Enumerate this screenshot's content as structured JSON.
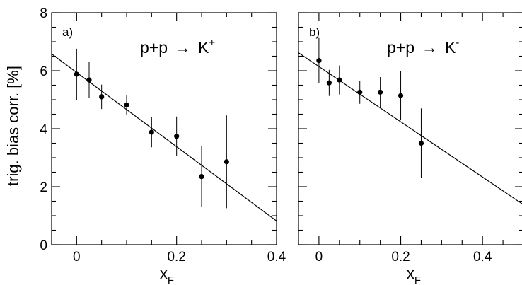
{
  "chart_data": [
    {
      "type": "scatter",
      "panel_label": "a)",
      "reaction": {
        "lhs": "p+p",
        "arrow": "→",
        "particle": "K",
        "charge": "+"
      },
      "xlabel": {
        "base": "x",
        "sub": "F"
      },
      "ylabel": "trig. bias corr. [%]",
      "xlim": [
        -0.05,
        0.4
      ],
      "ylim": [
        0,
        8
      ],
      "xticks": [
        0,
        0.2,
        0.4
      ],
      "xtick_labels": [
        "0",
        "0.2",
        "0.4"
      ],
      "yticks": [
        0,
        2,
        4,
        6,
        8
      ],
      "ytick_labels": [
        "0",
        "2",
        "4",
        "6",
        "8"
      ],
      "grid": false,
      "points": [
        {
          "x": 0.0,
          "y": 5.88,
          "err": 0.88
        },
        {
          "x": 0.025,
          "y": 5.68,
          "err": 0.62
        },
        {
          "x": 0.05,
          "y": 5.1,
          "err": 0.42
        },
        {
          "x": 0.1,
          "y": 4.82,
          "err": 0.35
        },
        {
          "x": 0.15,
          "y": 3.88,
          "err": 0.52
        },
        {
          "x": 0.2,
          "y": 3.74,
          "err": 0.68
        },
        {
          "x": 0.25,
          "y": 2.35,
          "err": 1.05
        },
        {
          "x": 0.3,
          "y": 2.86,
          "err": 1.6
        }
      ],
      "fit_line": {
        "x": [
          -0.05,
          0.4
        ],
        "y": [
          6.58,
          0.82
        ]
      }
    },
    {
      "type": "scatter",
      "panel_label": "b)",
      "reaction": {
        "lhs": "p+p",
        "arrow": "→",
        "particle": "K",
        "charge": "-"
      },
      "xlabel": {
        "base": "x",
        "sub": "F"
      },
      "ylabel": "",
      "xlim": [
        -0.05,
        0.5
      ],
      "ylim": [
        0,
        8
      ],
      "xticks": [
        0,
        0.2,
        0.4
      ],
      "xtick_labels": [
        "0",
        "0.2",
        "0.4"
      ],
      "yticks": [
        0,
        2,
        4,
        6,
        8
      ],
      "ytick_labels": [],
      "grid": false,
      "points": [
        {
          "x": 0.0,
          "y": 6.35,
          "err": 0.78
        },
        {
          "x": 0.025,
          "y": 5.58,
          "err": 0.45
        },
        {
          "x": 0.05,
          "y": 5.68,
          "err": 0.5
        },
        {
          "x": 0.1,
          "y": 5.26,
          "err": 0.4
        },
        {
          "x": 0.15,
          "y": 5.26,
          "err": 0.52
        },
        {
          "x": 0.2,
          "y": 5.14,
          "err": 0.85
        },
        {
          "x": 0.25,
          "y": 3.5,
          "err": 1.2
        }
      ],
      "fit_line": {
        "x": [
          -0.05,
          0.5
        ],
        "y": [
          6.62,
          1.38
        ]
      }
    }
  ]
}
